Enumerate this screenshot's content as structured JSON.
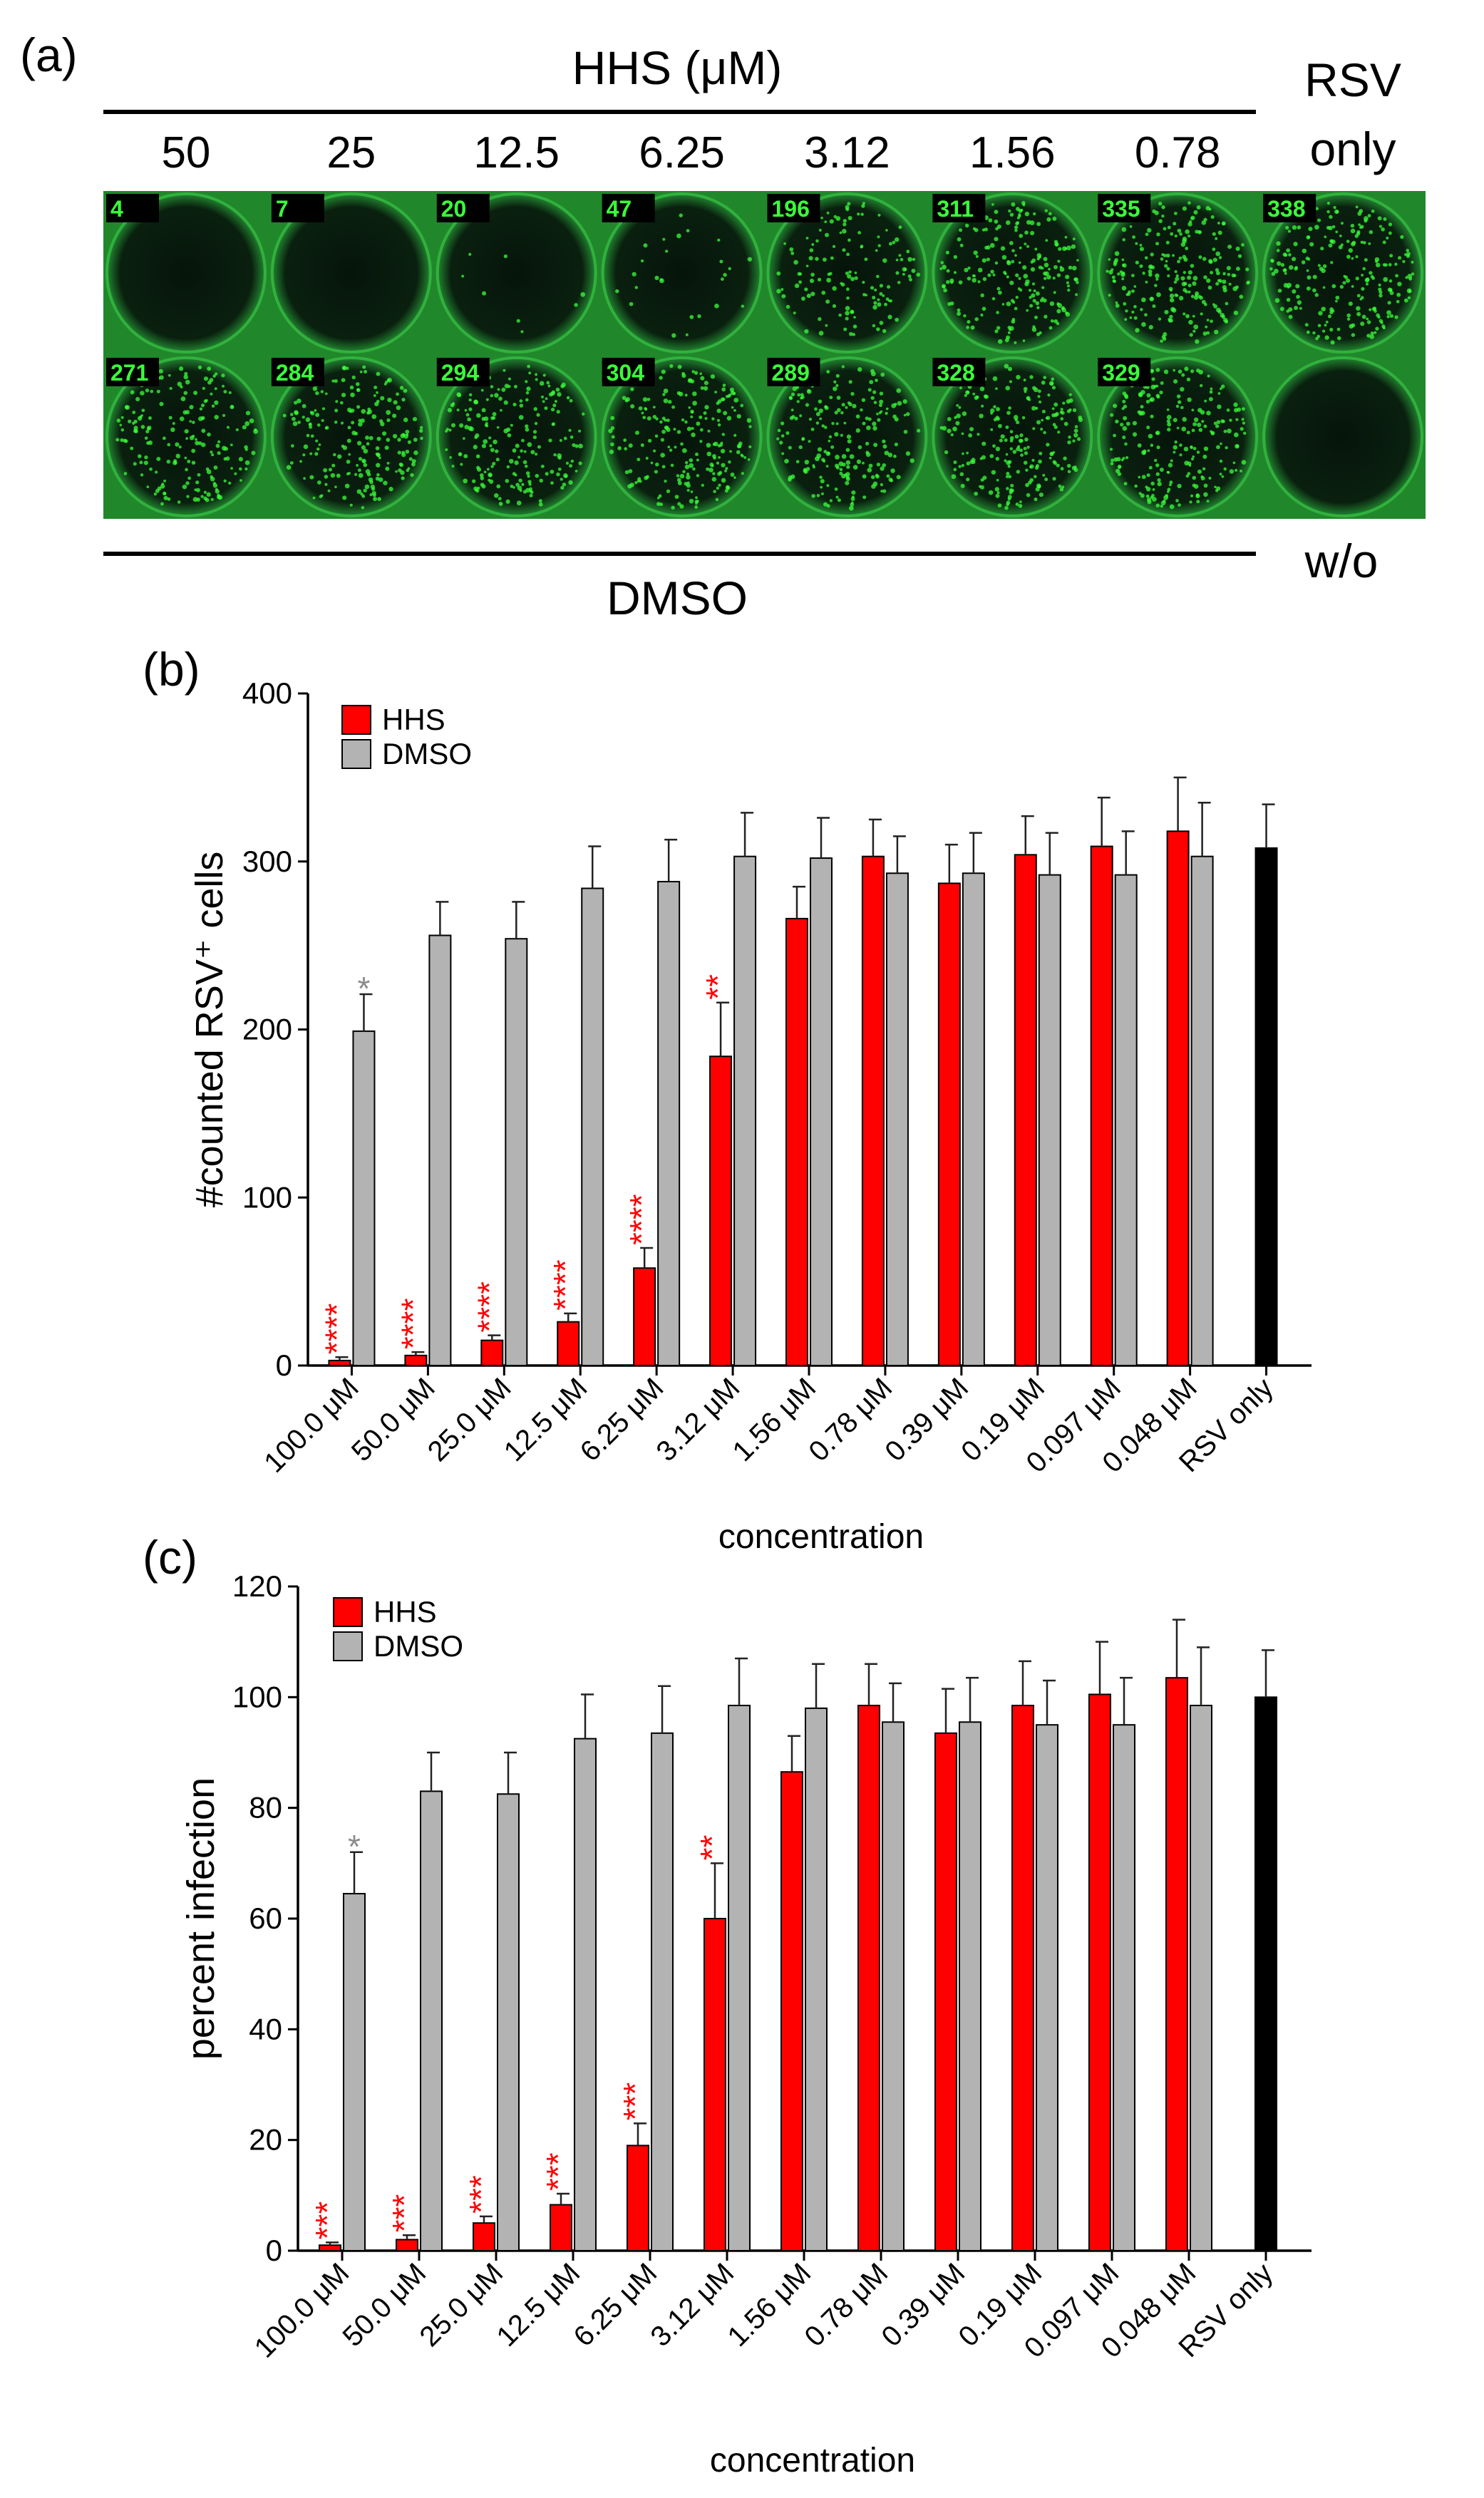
{
  "panel_a": {
    "label": "(a)",
    "top_header": "HHS (μM)",
    "columns": [
      "50",
      "25",
      "12.5",
      "6.25",
      "3.12",
      "1.56",
      "0.78"
    ],
    "rsv_label_line1": "RSV",
    "rsv_label_line2": "only",
    "bottom_header": "DMSO",
    "wo_label": "w/o",
    "row1_counts": [
      "4",
      "7",
      "20",
      "47",
      "196",
      "311",
      "335",
      "338"
    ],
    "row2_counts": [
      "271",
      "284",
      "294",
      "304",
      "289",
      "328",
      "329",
      ""
    ],
    "fluorescence_color": "#39ff39",
    "well_signal_level_row1": [
      0.0,
      0.0,
      0.03,
      0.1,
      0.55,
      0.85,
      0.9,
      0.9
    ],
    "well_signal_level_row2": [
      0.75,
      0.8,
      0.82,
      0.85,
      0.8,
      0.9,
      0.9,
      0.0
    ]
  },
  "colors": {
    "hhs": "#ff0000",
    "dmso": "#b3b3b3",
    "rsv": "#000000",
    "sig_hhs": "#ff0000",
    "sig_dmso": "#8c8c8c"
  },
  "chart_data": [
    {
      "panel": "(b)",
      "type": "bar",
      "ylabel": "#counted RSV⁺ cells",
      "xlabel": "concentration",
      "ylim": [
        0,
        400
      ],
      "yticks": [
        0,
        100,
        200,
        300,
        400
      ],
      "categories": [
        "100.0 μM",
        "50.0 μM",
        "25.0 μM",
        "12.5 μM",
        "6.25 μM",
        "3.12 μM",
        "1.56 μM",
        "0.78 μM",
        "0.39 μM",
        "0.19 μM",
        "0.097 μM",
        "0.048 μM",
        "RSV only"
      ],
      "legend": [
        "HHS",
        "DMSO"
      ],
      "legend_position": "top-left",
      "series": [
        {
          "name": "HHS",
          "values": [
            3,
            6,
            15,
            26,
            58,
            184,
            266,
            303,
            287,
            304,
            309,
            318,
            null
          ],
          "errors": [
            2,
            2,
            3,
            5,
            12,
            32,
            19,
            22,
            23,
            23,
            29,
            32,
            null
          ],
          "significance": [
            "****",
            "****",
            "****",
            "****",
            "****",
            "**",
            "",
            "",
            "",
            "",
            "",
            "",
            ""
          ]
        },
        {
          "name": "DMSO",
          "values": [
            199,
            256,
            254,
            284,
            288,
            303,
            302,
            293,
            293,
            292,
            292,
            303,
            null
          ],
          "errors": [
            22,
            20,
            22,
            25,
            25,
            26,
            24,
            22,
            24,
            25,
            26,
            32,
            null
          ],
          "significance": [
            "*",
            "",
            "",
            "",
            "",
            "",
            "",
            "",
            "",
            "",
            "",
            "",
            ""
          ]
        },
        {
          "name": "RSV only",
          "values": [
            null,
            null,
            null,
            null,
            null,
            null,
            null,
            null,
            null,
            null,
            null,
            null,
            308
          ],
          "errors": [
            null,
            null,
            null,
            null,
            null,
            null,
            null,
            null,
            null,
            null,
            null,
            null,
            26
          ]
        }
      ]
    },
    {
      "panel": "(c)",
      "type": "bar",
      "ylabel": "percent infection",
      "xlabel": "concentration",
      "ylim": [
        0,
        120
      ],
      "yticks": [
        0,
        20,
        40,
        60,
        80,
        100,
        120
      ],
      "categories": [
        "100.0 μM",
        "50.0 μM",
        "25.0 μM",
        "12.5 μM",
        "6.25 μM",
        "3.12 μM",
        "1.56 μM",
        "0.78 μM",
        "0.39 μM",
        "0.19 μM",
        "0.097 μM",
        "0.048 μM",
        "RSV only"
      ],
      "legend": [
        "HHS",
        "DMSO"
      ],
      "legend_position": "top-left",
      "series": [
        {
          "name": "HHS",
          "values": [
            1,
            2,
            5,
            8.3,
            19,
            60,
            86.5,
            98.5,
            93.5,
            98.5,
            100.5,
            103.5,
            null
          ],
          "errors": [
            0.5,
            0.8,
            1.2,
            2,
            4,
            10,
            6.5,
            7.5,
            8,
            8,
            9.5,
            10.5,
            null
          ],
          "significance": [
            "***",
            "***",
            "***",
            "***",
            "***",
            "**",
            "",
            "",
            "",
            "",
            "",
            "",
            ""
          ]
        },
        {
          "name": "DMSO",
          "values": [
            64.5,
            83,
            82.5,
            92.5,
            93.5,
            98.5,
            98,
            95.5,
            95.5,
            95,
            95,
            98.5,
            null
          ],
          "errors": [
            7.5,
            7,
            7.5,
            8,
            8.5,
            8.5,
            8,
            7,
            8,
            8,
            8.5,
            10.5,
            null
          ],
          "significance": [
            "*",
            "",
            "",
            "",
            "",
            "",
            "",
            "",
            "",
            "",
            "",
            "",
            ""
          ]
        },
        {
          "name": "RSV only",
          "values": [
            null,
            null,
            null,
            null,
            null,
            null,
            null,
            null,
            null,
            null,
            null,
            null,
            100
          ],
          "errors": [
            null,
            null,
            null,
            null,
            null,
            null,
            null,
            null,
            null,
            null,
            null,
            null,
            8.5
          ]
        }
      ]
    }
  ]
}
